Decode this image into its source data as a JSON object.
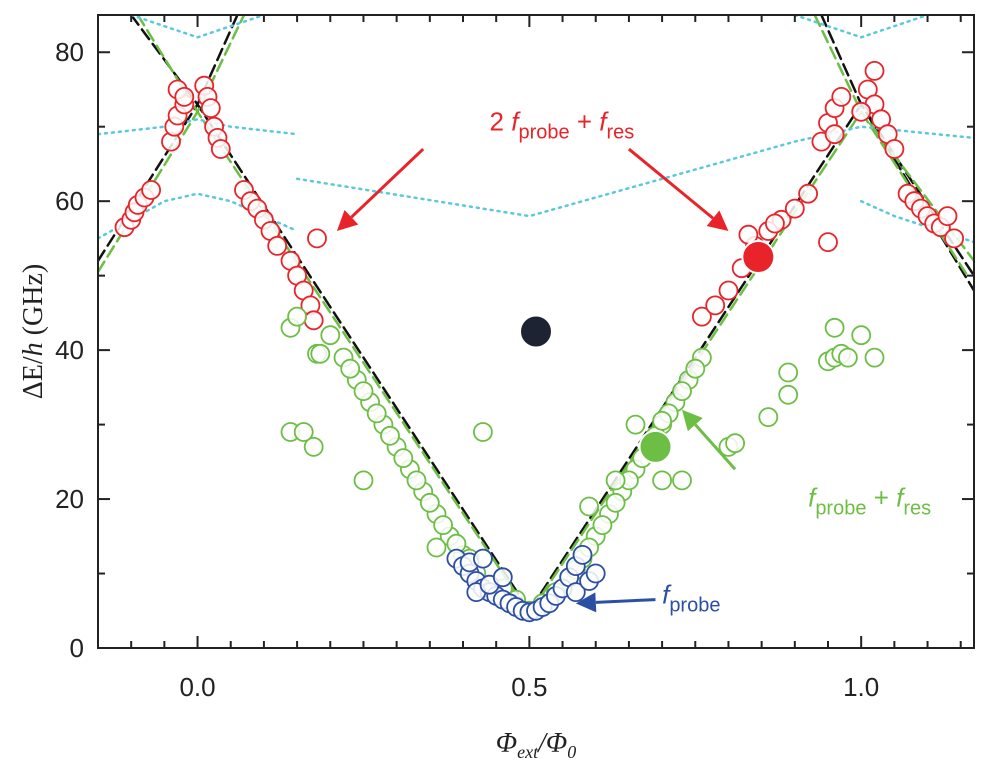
{
  "chart_data": {
    "type": "scatter",
    "title": "",
    "xlabel": {
      "base": "Φ",
      "sub": "ext",
      "over": "/Φ",
      "sub2": "0"
    },
    "ylabel": {
      "pre": "ΔE/",
      "italic": "h",
      "post": " (GHz)"
    },
    "xlim": [
      -0.15,
      1.17
    ],
    "ylim": [
      0,
      85
    ],
    "xticks": [
      0.0,
      0.5,
      1.0
    ],
    "xtick_labels": [
      "0.0",
      "0.5",
      "1.0"
    ],
    "yticks": [
      0,
      20,
      40,
      60,
      80
    ],
    "ytick_labels": [
      "0",
      "20",
      "40",
      "60",
      "80"
    ],
    "grid": false,
    "colors": {
      "red": "#e8242a",
      "green": "#6dbe45",
      "blue": "#2d4fa3",
      "theory_black": "#111111",
      "theory_green": "#6dbe45",
      "theory_cyan": "#5bc8dc",
      "dark_marker": "#1e2333"
    },
    "series": [
      {
        "color_key": "red",
        "points": [
          [
            -0.11,
            56.5
          ],
          [
            -0.1,
            57.5
          ],
          [
            -0.095,
            58.5
          ],
          [
            -0.09,
            59.5
          ],
          [
            -0.08,
            60.5
          ],
          [
            -0.07,
            61.5
          ],
          [
            -0.04,
            68
          ],
          [
            -0.035,
            70
          ],
          [
            -0.03,
            71.5
          ],
          [
            -0.02,
            73
          ],
          [
            -0.03,
            75
          ],
          [
            -0.02,
            74
          ],
          [
            0.01,
            75.5
          ],
          [
            0.015,
            74
          ],
          [
            0.02,
            72.5
          ],
          [
            0.025,
            70
          ],
          [
            0.03,
            68.5
          ],
          [
            0.035,
            67
          ],
          [
            0.07,
            61.5
          ],
          [
            0.08,
            60
          ],
          [
            0.09,
            59
          ],
          [
            0.1,
            57.5
          ],
          [
            0.11,
            56
          ],
          [
            0.12,
            54
          ],
          [
            0.14,
            52
          ],
          [
            0.15,
            50
          ],
          [
            0.16,
            48
          ],
          [
            0.17,
            46
          ],
          [
            0.175,
            44
          ],
          [
            0.18,
            55
          ],
          [
            0.76,
            44.5
          ],
          [
            0.78,
            46
          ],
          [
            0.8,
            48
          ],
          [
            0.82,
            51
          ],
          [
            0.84,
            54
          ],
          [
            0.86,
            56
          ],
          [
            0.88,
            57.5
          ],
          [
            0.9,
            59
          ],
          [
            0.92,
            61
          ],
          [
            0.83,
            55.5
          ],
          [
            0.87,
            57
          ],
          [
            0.95,
            54.5
          ],
          [
            0.94,
            68
          ],
          [
            0.95,
            70.5
          ],
          [
            0.96,
            72.5
          ],
          [
            0.97,
            74
          ],
          [
            0.96,
            69
          ],
          [
            1.01,
            75
          ],
          [
            1.02,
            73
          ],
          [
            1.03,
            71
          ],
          [
            1.04,
            69
          ],
          [
            1.05,
            67
          ],
          [
            1.02,
            77.5
          ],
          [
            1.0,
            72
          ],
          [
            1.07,
            61
          ],
          [
            1.08,
            60
          ],
          [
            1.09,
            59
          ],
          [
            1.1,
            58
          ],
          [
            1.11,
            57
          ],
          [
            1.12,
            56.5
          ],
          [
            1.13,
            58
          ],
          [
            1.14,
            55
          ]
        ]
      },
      {
        "color_key": "green",
        "points": [
          [
            0.14,
            29
          ],
          [
            0.16,
            29
          ],
          [
            0.175,
            27
          ],
          [
            0.18,
            39.5
          ],
          [
            0.185,
            39.5
          ],
          [
            0.14,
            43
          ],
          [
            0.15,
            44.5
          ],
          [
            0.2,
            42
          ],
          [
            0.22,
            39
          ],
          [
            0.24,
            36
          ],
          [
            0.26,
            33
          ],
          [
            0.28,
            30
          ],
          [
            0.3,
            27
          ],
          [
            0.32,
            24
          ],
          [
            0.34,
            21
          ],
          [
            0.36,
            18
          ],
          [
            0.38,
            15
          ],
          [
            0.4,
            12.5
          ],
          [
            0.23,
            37.5
          ],
          [
            0.25,
            34.5
          ],
          [
            0.27,
            31.5
          ],
          [
            0.29,
            28.5
          ],
          [
            0.31,
            25.5
          ],
          [
            0.33,
            22.5
          ],
          [
            0.35,
            19.5
          ],
          [
            0.37,
            16.5
          ],
          [
            0.39,
            14
          ],
          [
            0.25,
            22.5
          ],
          [
            0.36,
            13.5
          ],
          [
            0.41,
            12
          ],
          [
            0.42,
            10
          ],
          [
            0.43,
            29
          ],
          [
            0.46,
            8
          ],
          [
            0.48,
            6.5
          ],
          [
            0.5,
            5
          ],
          [
            0.52,
            6
          ],
          [
            0.54,
            7.5
          ],
          [
            0.56,
            9.5
          ],
          [
            0.58,
            12
          ],
          [
            0.6,
            15
          ],
          [
            0.62,
            18
          ],
          [
            0.64,
            21
          ],
          [
            0.66,
            24
          ],
          [
            0.68,
            27
          ],
          [
            0.7,
            30
          ],
          [
            0.72,
            33
          ],
          [
            0.74,
            36
          ],
          [
            0.76,
            39
          ],
          [
            0.57,
            10.5
          ],
          [
            0.59,
            13.5
          ],
          [
            0.61,
            16.5
          ],
          [
            0.63,
            19.5
          ],
          [
            0.65,
            22.5
          ],
          [
            0.67,
            25.5
          ],
          [
            0.69,
            28.5
          ],
          [
            0.71,
            31.5
          ],
          [
            0.73,
            34.5
          ],
          [
            0.75,
            37.5
          ],
          [
            0.59,
            19
          ],
          [
            0.63,
            22.5
          ],
          [
            0.66,
            30
          ],
          [
            0.7,
            30.5
          ],
          [
            0.7,
            22.5
          ],
          [
            0.73,
            22.5
          ],
          [
            0.8,
            27
          ],
          [
            0.81,
            27.5
          ],
          [
            0.86,
            31
          ],
          [
            0.89,
            34
          ],
          [
            0.89,
            37
          ],
          [
            0.95,
            38.5
          ],
          [
            0.96,
            39
          ],
          [
            0.97,
            39.5
          ],
          [
            0.98,
            39
          ],
          [
            0.96,
            43
          ],
          [
            1.0,
            42
          ],
          [
            1.02,
            39
          ]
        ]
      },
      {
        "color_key": "blue",
        "points": [
          [
            0.39,
            12
          ],
          [
            0.4,
            11
          ],
          [
            0.41,
            10
          ],
          [
            0.42,
            9
          ],
          [
            0.43,
            8
          ],
          [
            0.44,
            7.5
          ],
          [
            0.45,
            7
          ],
          [
            0.46,
            6.5
          ],
          [
            0.47,
            6
          ],
          [
            0.48,
            5.5
          ],
          [
            0.49,
            5
          ],
          [
            0.5,
            4.8
          ],
          [
            0.51,
            5
          ],
          [
            0.52,
            5.5
          ],
          [
            0.53,
            6
          ],
          [
            0.54,
            7
          ],
          [
            0.55,
            8
          ],
          [
            0.56,
            9.5
          ],
          [
            0.57,
            11
          ],
          [
            0.58,
            12.5
          ],
          [
            0.42,
            7.5
          ],
          [
            0.44,
            8.5
          ],
          [
            0.46,
            9.5
          ],
          [
            0.57,
            7.5
          ],
          [
            0.59,
            9
          ],
          [
            0.6,
            10
          ],
          [
            0.41,
            11.5
          ],
          [
            0.43,
            12
          ]
        ]
      }
    ],
    "theory": [
      {
        "name": "black_dashed",
        "color_key": "theory_black",
        "dash": "12 6",
        "segments": [
          [
            [
              -0.1,
              85
            ],
            [
              0.0,
              73
            ],
            [
              0.5,
              5
            ],
            [
              1.0,
              73
            ],
            [
              1.17,
              48
            ]
          ],
          [
            [
              -0.15,
              52
            ],
            [
              0.0,
              73
            ],
            [
              0.06,
              85
            ]
          ],
          [
            [
              0.94,
              85
            ],
            [
              1.0,
              73
            ],
            [
              1.17,
              50
            ]
          ]
        ]
      },
      {
        "name": "green_dashed",
        "color_key": "theory_green",
        "dash": "12 6",
        "segments": [
          [
            [
              -0.09,
              85
            ],
            [
              0.0,
              72
            ],
            [
              0.5,
              4.6
            ],
            [
              1.0,
              72
            ],
            [
              1.17,
              52
            ]
          ],
          [
            [
              -0.15,
              50.5
            ],
            [
              0.0,
              72
            ],
            [
              0.07,
              85
            ]
          ],
          [
            [
              0.93,
              85
            ],
            [
              1.0,
              72
            ],
            [
              1.16,
              50
            ]
          ]
        ]
      },
      {
        "name": "cyan_dotted",
        "color_key": "theory_cyan",
        "dash": "2 5",
        "segments": [
          [
            [
              -0.15,
              69
            ],
            [
              -0.05,
              70
            ],
            [
              0.0,
              71
            ],
            [
              0.05,
              70
            ],
            [
              0.15,
              69
            ]
          ],
          [
            [
              0.15,
              63
            ],
            [
              0.5,
              58
            ],
            [
              0.9,
              68
            ],
            [
              1.0,
              70
            ],
            [
              1.17,
              68.5
            ]
          ],
          [
            [
              -0.15,
              55
            ],
            [
              -0.05,
              60
            ],
            [
              0.0,
              61
            ],
            [
              0.05,
              60
            ],
            [
              0.15,
              56
            ]
          ],
          [
            [
              -0.1,
              85
            ],
            [
              0.0,
              82
            ],
            [
              0.1,
              85
            ]
          ],
          [
            [
              0.9,
              85
            ],
            [
              1.0,
              82
            ],
            [
              1.1,
              85
            ]
          ],
          [
            [
              1.0,
              60
            ],
            [
              1.05,
              58
            ],
            [
              1.17,
              54.5
            ]
          ]
        ]
      }
    ],
    "highlighted_points": [
      {
        "x": 0.51,
        "y": 42.5,
        "color_key": "dark_marker"
      },
      {
        "x": 0.69,
        "y": 27,
        "color_key": "green"
      },
      {
        "x": 0.845,
        "y": 52.5,
        "color_key": "red"
      }
    ],
    "annotations": [
      {
        "id": "red_label",
        "parts": [
          "2 ",
          "f",
          "probe",
          " + ",
          "f",
          "res"
        ],
        "color_key": "red",
        "x": 0.44,
        "y": 69.5
      },
      {
        "id": "green_label",
        "parts": [
          "f",
          "probe",
          " + ",
          "f",
          "res"
        ],
        "color_key": "green",
        "x": 0.92,
        "y": 19
      },
      {
        "id": "blue_label",
        "parts": [
          "f",
          "probe"
        ],
        "color_key": "blue",
        "x": 0.7,
        "y": 6
      }
    ],
    "arrows": [
      {
        "color_key": "red",
        "from": [
          0.34,
          67
        ],
        "to": [
          0.21,
          56
        ]
      },
      {
        "color_key": "red",
        "from": [
          0.65,
          67
        ],
        "to": [
          0.8,
          56
        ]
      },
      {
        "color_key": "green",
        "from": [
          0.81,
          24
        ],
        "to": [
          0.73,
          32
        ]
      },
      {
        "color_key": "blue",
        "from": [
          0.69,
          6.5
        ],
        "to": [
          0.57,
          6
        ]
      }
    ]
  }
}
